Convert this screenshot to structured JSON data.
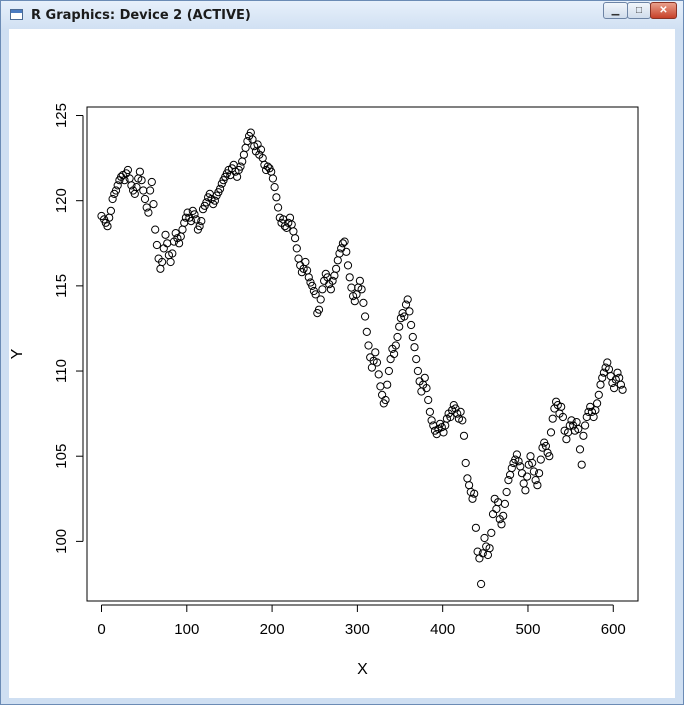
{
  "window": {
    "title": "R Graphics: Device 2 (ACTIVE)",
    "buttons": {
      "minimize": "▁",
      "maximize": "□",
      "close": "✕"
    }
  },
  "chart_data": {
    "type": "scatter",
    "xlabel": "X",
    "ylabel": "Y",
    "xlim": [
      -17,
      629
    ],
    "ylim": [
      96.5,
      125.5
    ],
    "xticks": [
      0,
      100,
      200,
      300,
      400,
      500,
      600
    ],
    "yticks": [
      100,
      105,
      110,
      115,
      120,
      125
    ],
    "marker": "open-circle",
    "grid": false,
    "legend": "none",
    "color": "#000000",
    "points": [
      [
        0,
        119.1
      ],
      [
        3,
        118.9
      ],
      [
        5,
        118.7
      ],
      [
        7,
        118.5
      ],
      [
        9,
        119.0
      ],
      [
        11,
        119.4
      ],
      [
        13,
        120.1
      ],
      [
        15,
        120.4
      ],
      [
        17,
        120.6
      ],
      [
        19,
        120.9
      ],
      [
        21,
        121.2
      ],
      [
        23,
        121.4
      ],
      [
        25,
        121.5
      ],
      [
        27,
        121.2
      ],
      [
        29,
        121.6
      ],
      [
        31,
        121.8
      ],
      [
        33,
        121.3
      ],
      [
        35,
        120.9
      ],
      [
        37,
        120.6
      ],
      [
        39,
        120.4
      ],
      [
        41,
        120.8
      ],
      [
        43,
        121.3
      ],
      [
        45,
        121.7
      ],
      [
        47,
        121.2
      ],
      [
        49,
        120.6
      ],
      [
        51,
        120.1
      ],
      [
        53,
        119.6
      ],
      [
        55,
        119.3
      ],
      [
        57,
        120.6
      ],
      [
        59,
        121.1
      ],
      [
        61,
        119.8
      ],
      [
        63,
        118.3
      ],
      [
        65,
        117.4
      ],
      [
        67,
        116.6
      ],
      [
        69,
        116.0
      ],
      [
        71,
        116.4
      ],
      [
        73,
        117.2
      ],
      [
        75,
        118.0
      ],
      [
        77,
        117.5
      ],
      [
        79,
        116.8
      ],
      [
        81,
        116.4
      ],
      [
        83,
        116.9
      ],
      [
        85,
        117.6
      ],
      [
        87,
        118.1
      ],
      [
        89,
        117.8
      ],
      [
        91,
        117.5
      ],
      [
        93,
        117.9
      ],
      [
        95,
        118.3
      ],
      [
        97,
        118.7
      ],
      [
        99,
        119.0
      ],
      [
        101,
        119.3
      ],
      [
        103,
        119.0
      ],
      [
        105,
        118.8
      ],
      [
        107,
        119.4
      ],
      [
        109,
        119.2
      ],
      [
        111,
        118.9
      ],
      [
        113,
        118.3
      ],
      [
        115,
        118.5
      ],
      [
        117,
        118.8
      ],
      [
        119,
        119.5
      ],
      [
        121,
        119.7
      ],
      [
        123,
        119.9
      ],
      [
        125,
        120.2
      ],
      [
        127,
        120.4
      ],
      [
        129,
        120.1
      ],
      [
        131,
        119.8
      ],
      [
        133,
        120.0
      ],
      [
        135,
        120.3
      ],
      [
        137,
        120.5
      ],
      [
        139,
        120.7
      ],
      [
        141,
        121.0
      ],
      [
        143,
        121.2
      ],
      [
        145,
        121.4
      ],
      [
        147,
        121.6
      ],
      [
        149,
        121.8
      ],
      [
        151,
        121.5
      ],
      [
        153,
        121.9
      ],
      [
        155,
        122.1
      ],
      [
        157,
        121.7
      ],
      [
        159,
        121.4
      ],
      [
        161,
        121.8
      ],
      [
        163,
        122.0
      ],
      [
        165,
        122.3
      ],
      [
        167,
        122.7
      ],
      [
        169,
        123.1
      ],
      [
        171,
        123.5
      ],
      [
        173,
        123.8
      ],
      [
        175,
        124.0
      ],
      [
        177,
        123.6
      ],
      [
        179,
        123.2
      ],
      [
        181,
        122.9
      ],
      [
        183,
        123.3
      ],
      [
        185,
        122.7
      ],
      [
        187,
        123.0
      ],
      [
        189,
        122.5
      ],
      [
        191,
        122.1
      ],
      [
        193,
        121.8
      ],
      [
        195,
        122.0
      ],
      [
        197,
        121.9
      ],
      [
        199,
        121.7
      ],
      [
        201,
        121.3
      ],
      [
        203,
        120.8
      ],
      [
        205,
        120.2
      ],
      [
        207,
        119.6
      ],
      [
        209,
        119.0
      ],
      [
        211,
        118.7
      ],
      [
        213,
        118.9
      ],
      [
        215,
        118.5
      ],
      [
        217,
        118.4
      ],
      [
        219,
        118.7
      ],
      [
        221,
        119.0
      ],
      [
        223,
        118.6
      ],
      [
        225,
        118.2
      ],
      [
        227,
        117.8
      ],
      [
        229,
        117.2
      ],
      [
        231,
        116.6
      ],
      [
        233,
        116.2
      ],
      [
        235,
        115.8
      ],
      [
        237,
        116.0
      ],
      [
        239,
        116.4
      ],
      [
        241,
        115.9
      ],
      [
        243,
        115.5
      ],
      [
        245,
        115.2
      ],
      [
        247,
        115.0
      ],
      [
        249,
        114.7
      ],
      [
        251,
        114.5
      ],
      [
        253,
        113.4
      ],
      [
        255,
        113.6
      ],
      [
        257,
        114.2
      ],
      [
        259,
        114.8
      ],
      [
        261,
        115.3
      ],
      [
        263,
        115.7
      ],
      [
        265,
        115.5
      ],
      [
        267,
        115.1
      ],
      [
        269,
        114.8
      ],
      [
        271,
        115.3
      ],
      [
        273,
        115.6
      ],
      [
        275,
        116.0
      ],
      [
        277,
        116.5
      ],
      [
        279,
        116.9
      ],
      [
        281,
        117.2
      ],
      [
        283,
        117.5
      ],
      [
        285,
        117.6
      ],
      [
        287,
        117.0
      ],
      [
        289,
        116.2
      ],
      [
        291,
        115.5
      ],
      [
        293,
        114.9
      ],
      [
        295,
        114.4
      ],
      [
        297,
        114.1
      ],
      [
        299,
        114.5
      ],
      [
        301,
        114.9
      ],
      [
        303,
        115.3
      ],
      [
        305,
        114.8
      ],
      [
        307,
        114.0
      ],
      [
        309,
        113.2
      ],
      [
        311,
        112.3
      ],
      [
        313,
        111.5
      ],
      [
        315,
        110.8
      ],
      [
        317,
        110.2
      ],
      [
        319,
        110.6
      ],
      [
        321,
        111.1
      ],
      [
        323,
        110.5
      ],
      [
        325,
        109.8
      ],
      [
        327,
        109.1
      ],
      [
        329,
        108.6
      ],
      [
        331,
        108.1
      ],
      [
        333,
        108.3
      ],
      [
        335,
        109.2
      ],
      [
        337,
        110.0
      ],
      [
        339,
        110.7
      ],
      [
        341,
        111.3
      ],
      [
        343,
        111.0
      ],
      [
        345,
        111.5
      ],
      [
        347,
        112.0
      ],
      [
        349,
        112.6
      ],
      [
        351,
        113.1
      ],
      [
        353,
        113.4
      ],
      [
        355,
        113.2
      ],
      [
        357,
        113.9
      ],
      [
        359,
        114.2
      ],
      [
        361,
        113.5
      ],
      [
        363,
        112.7
      ],
      [
        365,
        112.0
      ],
      [
        367,
        111.4
      ],
      [
        369,
        110.7
      ],
      [
        371,
        110.0
      ],
      [
        373,
        109.4
      ],
      [
        375,
        108.8
      ],
      [
        377,
        109.2
      ],
      [
        379,
        109.6
      ],
      [
        381,
        109.0
      ],
      [
        383,
        108.3
      ],
      [
        385,
        107.6
      ],
      [
        387,
        107.1
      ],
      [
        389,
        106.8
      ],
      [
        391,
        106.5
      ],
      [
        393,
        106.3
      ],
      [
        395,
        106.6
      ],
      [
        397,
        106.9
      ],
      [
        399,
        106.7
      ],
      [
        401,
        106.4
      ],
      [
        403,
        106.8
      ],
      [
        405,
        107.2
      ],
      [
        407,
        107.5
      ],
      [
        409,
        107.3
      ],
      [
        411,
        107.7
      ],
      [
        413,
        108.0
      ],
      [
        415,
        107.8
      ],
      [
        417,
        107.5
      ],
      [
        419,
        107.2
      ],
      [
        421,
        107.6
      ],
      [
        423,
        107.1
      ],
      [
        425,
        106.2
      ],
      [
        427,
        104.6
      ],
      [
        429,
        103.7
      ],
      [
        431,
        103.3
      ],
      [
        433,
        102.9
      ],
      [
        435,
        102.5
      ],
      [
        437,
        102.8
      ],
      [
        439,
        100.8
      ],
      [
        441,
        99.4
      ],
      [
        443,
        99.0
      ],
      [
        445,
        97.5
      ],
      [
        447,
        99.3
      ],
      [
        449,
        100.2
      ],
      [
        451,
        99.7
      ],
      [
        453,
        99.2
      ],
      [
        455,
        99.6
      ],
      [
        457,
        100.5
      ],
      [
        459,
        101.6
      ],
      [
        461,
        102.5
      ],
      [
        463,
        101.9
      ],
      [
        465,
        102.3
      ],
      [
        467,
        101.3
      ],
      [
        469,
        101.0
      ],
      [
        471,
        101.5
      ],
      [
        473,
        102.2
      ],
      [
        475,
        102.9
      ],
      [
        477,
        103.6
      ],
      [
        479,
        103.9
      ],
      [
        481,
        104.3
      ],
      [
        483,
        104.6
      ],
      [
        485,
        104.8
      ],
      [
        487,
        105.1
      ],
      [
        489,
        104.7
      ],
      [
        491,
        104.4
      ],
      [
        493,
        104.0
      ],
      [
        495,
        103.4
      ],
      [
        497,
        103.0
      ],
      [
        499,
        103.8
      ],
      [
        501,
        104.5
      ],
      [
        503,
        105.0
      ],
      [
        505,
        104.6
      ],
      [
        507,
        104.1
      ],
      [
        509,
        103.6
      ],
      [
        511,
        103.3
      ],
      [
        513,
        104.0
      ],
      [
        515,
        104.8
      ],
      [
        517,
        105.5
      ],
      [
        519,
        105.8
      ],
      [
        521,
        105.6
      ],
      [
        523,
        105.2
      ],
      [
        525,
        105.0
      ],
      [
        527,
        106.4
      ],
      [
        529,
        107.2
      ],
      [
        531,
        107.8
      ],
      [
        533,
        108.2
      ],
      [
        535,
        108.0
      ],
      [
        537,
        107.5
      ],
      [
        539,
        107.9
      ],
      [
        541,
        107.3
      ],
      [
        543,
        106.5
      ],
      [
        545,
        106.0
      ],
      [
        547,
        106.4
      ],
      [
        549,
        106.8
      ],
      [
        551,
        107.1
      ],
      [
        553,
        106.8
      ],
      [
        555,
        106.5
      ],
      [
        557,
        107.0
      ],
      [
        559,
        106.6
      ],
      [
        561,
        105.4
      ],
      [
        563,
        104.5
      ],
      [
        565,
        106.2
      ],
      [
        567,
        106.8
      ],
      [
        569,
        107.3
      ],
      [
        571,
        107.6
      ],
      [
        573,
        107.9
      ],
      [
        575,
        107.6
      ],
      [
        577,
        107.3
      ],
      [
        579,
        107.7
      ],
      [
        581,
        108.1
      ],
      [
        583,
        108.6
      ],
      [
        585,
        109.2
      ],
      [
        587,
        109.6
      ],
      [
        589,
        109.9
      ],
      [
        591,
        110.2
      ],
      [
        593,
        110.5
      ],
      [
        595,
        110.1
      ],
      [
        597,
        109.7
      ],
      [
        599,
        109.3
      ],
      [
        601,
        109.0
      ],
      [
        603,
        109.5
      ],
      [
        605,
        109.9
      ],
      [
        607,
        109.6
      ],
      [
        609,
        109.2
      ],
      [
        611,
        108.9
      ]
    ]
  }
}
